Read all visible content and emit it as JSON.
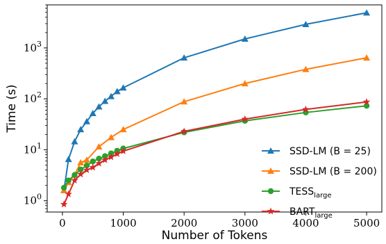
{
  "chart_data": {
    "type": "line",
    "title": "",
    "xlabel": "Number of Tokens",
    "ylabel": "Time (s)",
    "xlim": [
      -250,
      5250
    ],
    "ylim": [
      0.6,
      7000
    ],
    "yscale": "log",
    "grid": false,
    "legend_position": "lower-right",
    "x_ticks": [
      0,
      1000,
      2000,
      3000,
      4000,
      5000
    ],
    "x_tick_labels": [
      "0",
      "1000",
      "2000",
      "3000",
      "4000",
      "5000"
    ],
    "y_ticks": [
      1,
      10,
      100,
      1000
    ],
    "y_tick_labels": [
      {
        "base": "10",
        "exp": "0"
      },
      {
        "base": "10",
        "exp": "1"
      },
      {
        "base": "10",
        "exp": "2"
      },
      {
        "base": "10",
        "exp": "3"
      }
    ],
    "series": [
      {
        "name": "SSD-LM (B = 25)",
        "legend_main": "SSD-LM (B = 25)",
        "legend_sub": "",
        "color": "#1f77b4",
        "marker": "triangle",
        "points": [
          [
            25,
            1.6
          ],
          [
            100,
            6.5
          ],
          [
            200,
            14.5
          ],
          [
            300,
            25
          ],
          [
            400,
            36
          ],
          [
            500,
            52
          ],
          [
            600,
            70
          ],
          [
            700,
            90
          ],
          [
            800,
            112
          ],
          [
            900,
            140
          ],
          [
            1000,
            165
          ],
          [
            2000,
            640
          ],
          [
            3000,
            1500
          ],
          [
            4000,
            2900
          ],
          [
            5000,
            4900
          ]
        ]
      },
      {
        "name": "SSD-LM (B = 200)",
        "legend_main": "SSD-LM (B = 200)",
        "legend_sub": "",
        "color": "#ff7f0e",
        "marker": "triangle",
        "points": [
          [
            25,
            1.6
          ],
          [
            100,
            2.3
          ],
          [
            200,
            3.2
          ],
          [
            300,
            5.6
          ],
          [
            400,
            6.3
          ],
          [
            600,
            11.5
          ],
          [
            800,
            17.5
          ],
          [
            1000,
            25
          ],
          [
            2000,
            88
          ],
          [
            3000,
            200
          ],
          [
            4000,
            380
          ],
          [
            5000,
            640
          ]
        ]
      },
      {
        "name": "TESSlarge",
        "legend_main": "TESS",
        "legend_sub": "large",
        "color": "#2ca02c",
        "marker": "circle",
        "points": [
          [
            25,
            1.8
          ],
          [
            100,
            2.5
          ],
          [
            200,
            3.2
          ],
          [
            300,
            4.1
          ],
          [
            400,
            4.9
          ],
          [
            500,
            5.9
          ],
          [
            600,
            6.7
          ],
          [
            700,
            7.5
          ],
          [
            800,
            8.5
          ],
          [
            900,
            9.6
          ],
          [
            1000,
            10.6
          ],
          [
            2000,
            22
          ],
          [
            3000,
            37
          ],
          [
            4000,
            54
          ],
          [
            5000,
            73
          ]
        ]
      },
      {
        "name": "BARTlarge",
        "legend_main": "BART",
        "legend_sub": "large",
        "color": "#d62728",
        "marker": "star",
        "points": [
          [
            25,
            0.85
          ],
          [
            100,
            1.35
          ],
          [
            200,
            2.5
          ],
          [
            300,
            3.3
          ],
          [
            400,
            4.0
          ],
          [
            500,
            4.5
          ],
          [
            600,
            5.4
          ],
          [
            700,
            6.3
          ],
          [
            800,
            7.2
          ],
          [
            900,
            8.3
          ],
          [
            1000,
            9.4
          ],
          [
            2000,
            23
          ],
          [
            3000,
            40
          ],
          [
            4000,
            62
          ],
          [
            5000,
            87
          ]
        ]
      }
    ]
  }
}
